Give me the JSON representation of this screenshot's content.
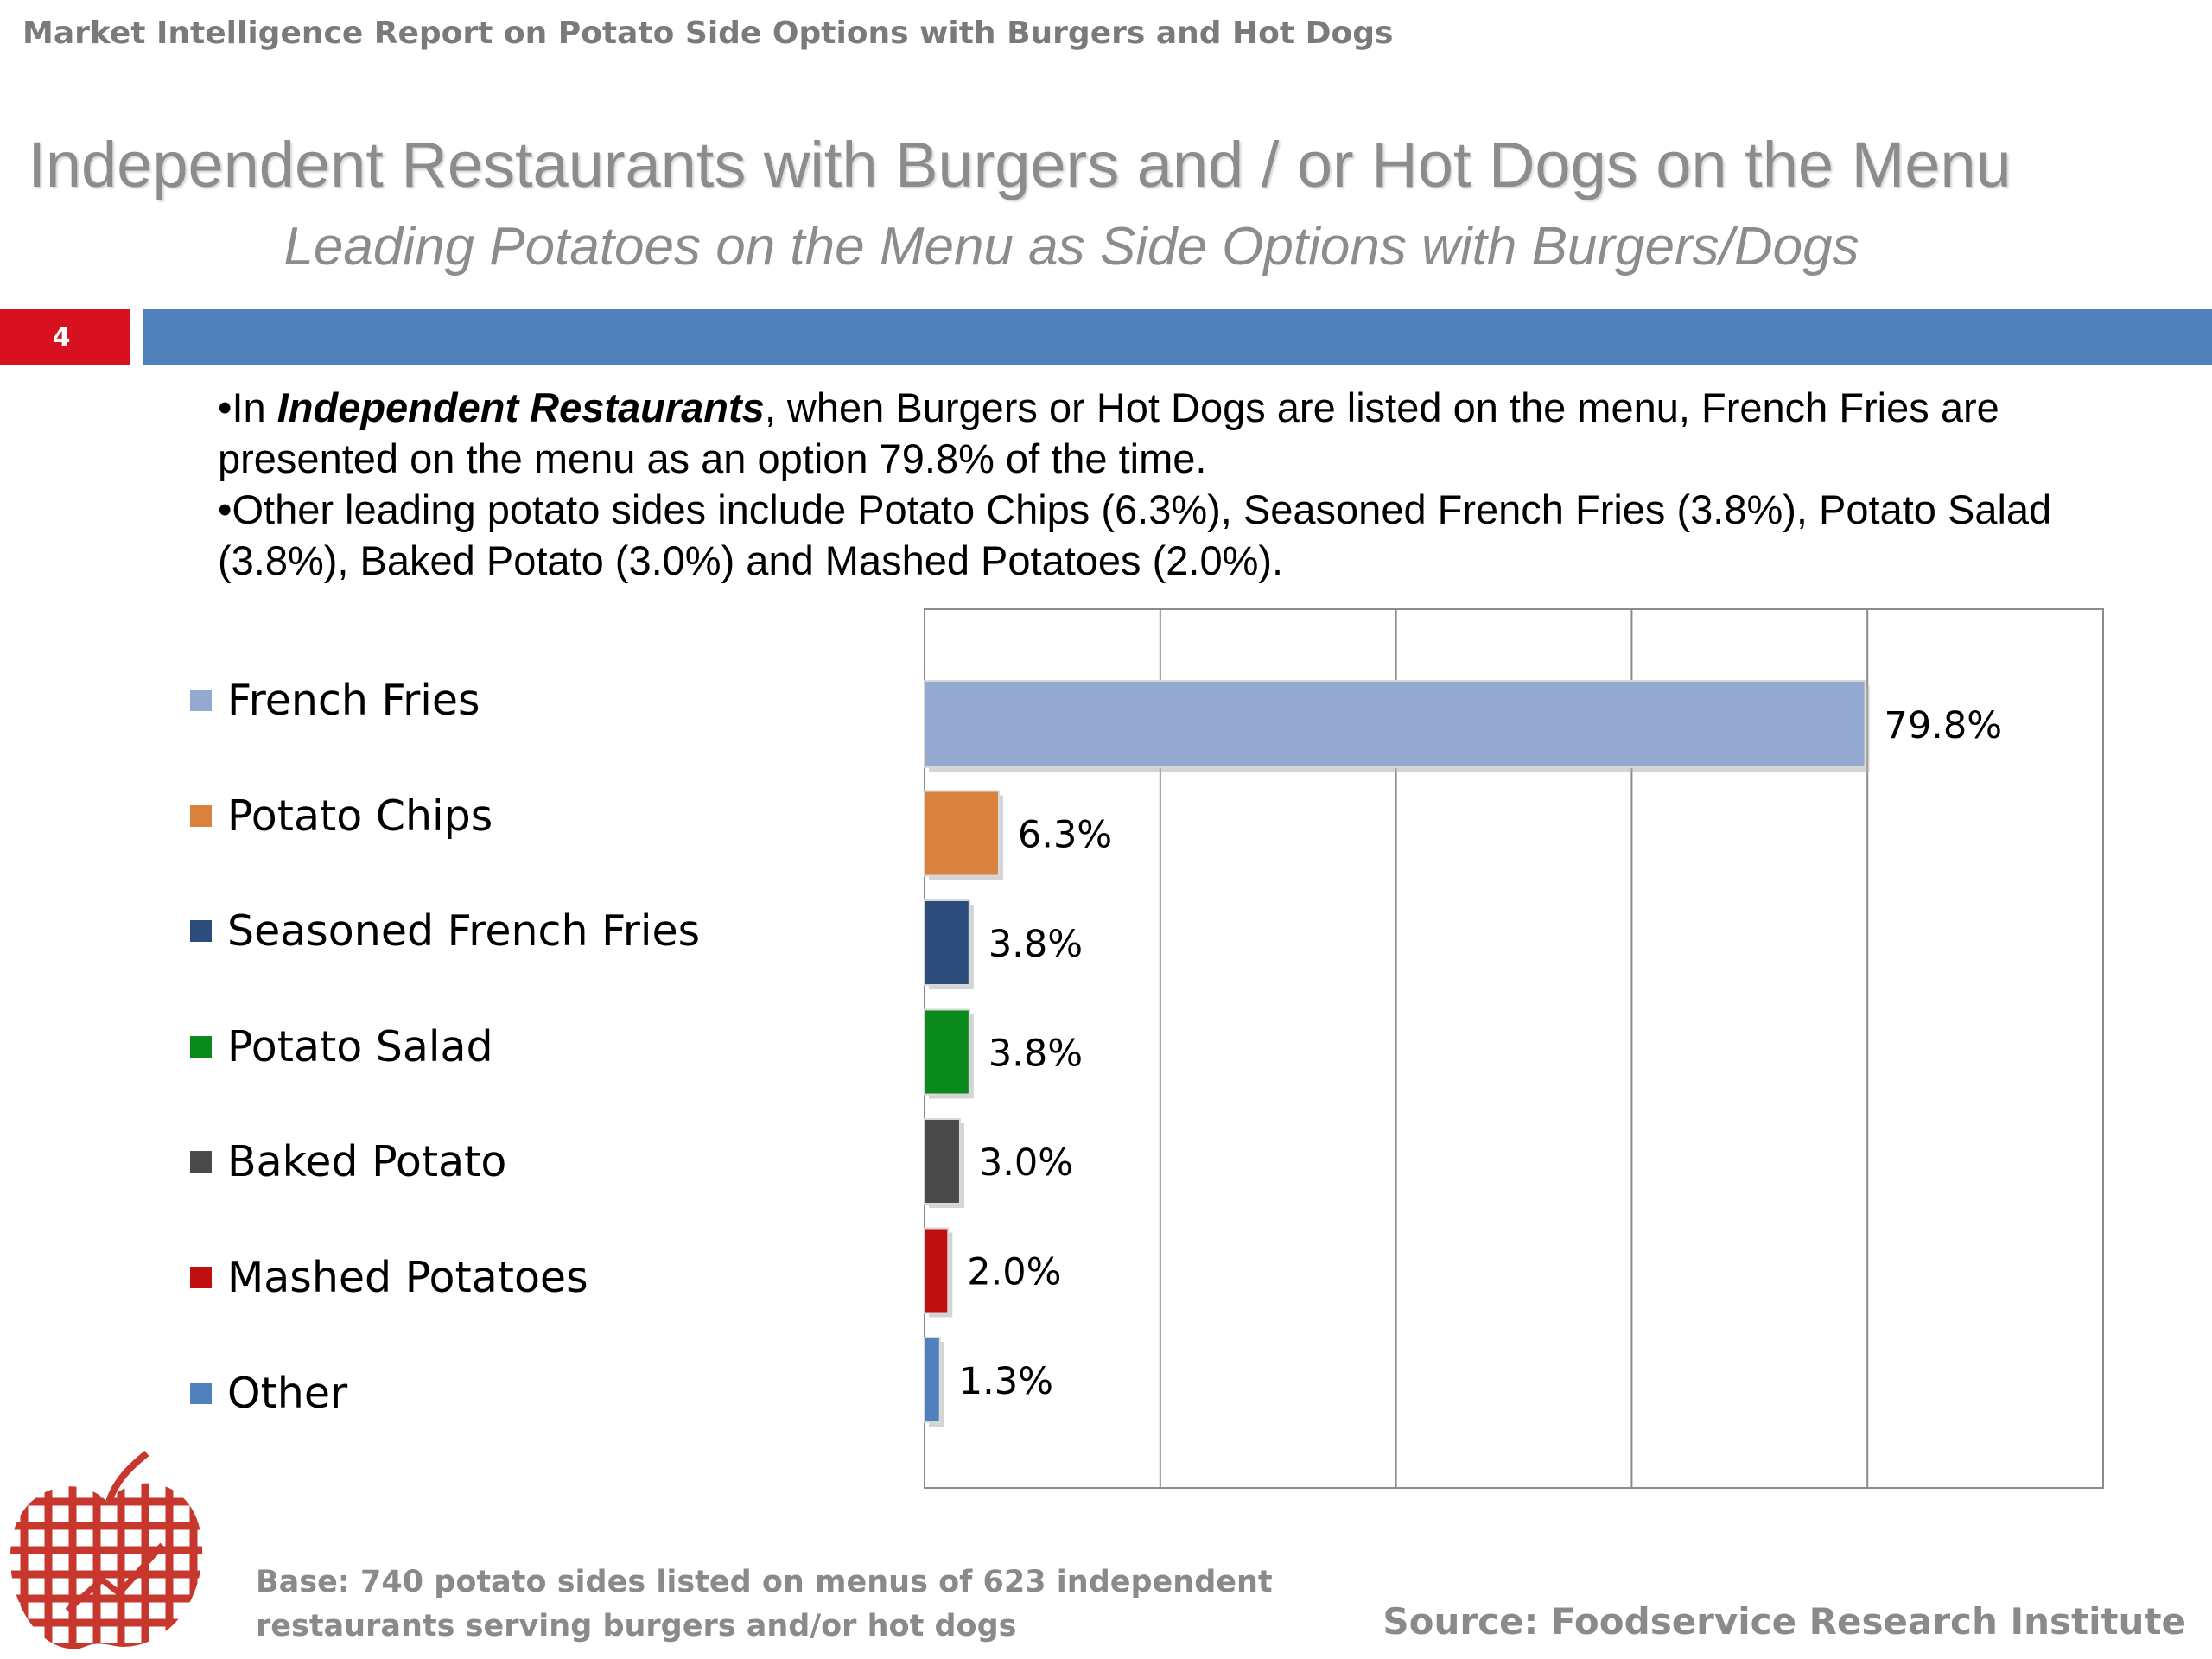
{
  "header": {
    "report_title": "Market Intelligence Report on Potato Side Options with Burgers and Hot Dogs",
    "title": "Independent Restaurants with Burgers and / or Hot Dogs on the Menu",
    "subtitle": "Leading Potatoes on the Menu as Side Options with Burgers/Dogs",
    "slide_number": "4"
  },
  "bullets": {
    "b1_prefix": "•In ",
    "b1_bold": "Independent Restaurants",
    "b1_rest": ", when Burgers or Hot Dogs are listed on the menu, French Fries are presented on the menu as an option 79.8% of the time.",
    "b2": "•Other leading potato sides include Potato Chips (6.3%), Seasoned French Fries (3.8%), Potato Salad (3.8%), Baked Potato (3.0%) and Mashed Potatoes (2.0%)."
  },
  "chart_data": {
    "type": "bar",
    "orientation": "horizontal",
    "categories": [
      "French Fries",
      "Potato Chips",
      "Seasoned French Fries",
      "Potato Salad",
      "Baked Potato",
      "Mashed Potatoes",
      "Other"
    ],
    "values": [
      79.8,
      6.3,
      3.8,
      3.8,
      3.0,
      2.0,
      1.3
    ],
    "labels": [
      "79.8%",
      "6.3%",
      "3.8%",
      "3.8%",
      "3.0%",
      "2.0%",
      "1.3%"
    ],
    "colors": [
      "#93a9cf",
      "#d9823b",
      "#2c4d7c",
      "#0a8a1a",
      "#4a4a4a",
      "#c00f0f",
      "#4f81bd"
    ],
    "xlim": [
      0,
      100
    ],
    "grid": true,
    "legend": "left",
    "xlabel": "",
    "ylabel": ""
  },
  "footer": {
    "base": "Base: 740 potato sides listed on menus of 623 independent restaurants serving burgers and/or hot dogs",
    "source": "Source:  Foodservice Research Institute",
    "logo_icon": "apple-grid-logo-icon"
  }
}
